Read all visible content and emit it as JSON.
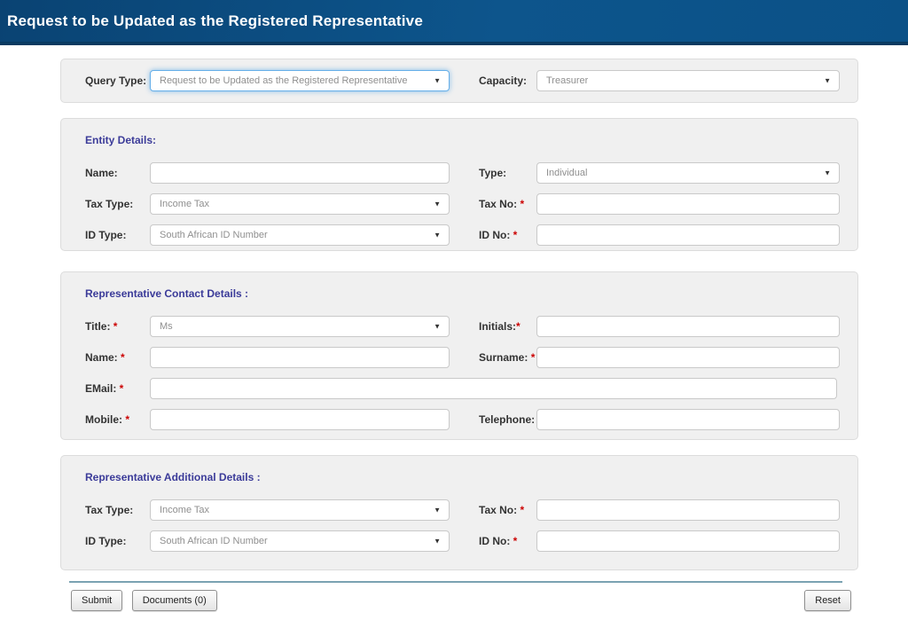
{
  "colors": {
    "header_blue_dark": "#0a4373",
    "header_blue_light": "#0d558c",
    "header_border": "#093a61",
    "panel_background": "#f0f0f0",
    "section_heading_blue": "#3b3b99",
    "required_red": "#cc0000",
    "focus_blue": "#66afe9",
    "divider_teal": "#7aa2b2"
  },
  "header": {
    "title": "Request to be Updated as the Registered Representative"
  },
  "icons": {
    "dropdown_arrow": "▼"
  },
  "query_panel": {
    "query_type_label": "Query Type:",
    "query_type_value": "Request to be Updated as the Registered Representative",
    "capacity_label": "Capacity:",
    "capacity_value": "Treasurer"
  },
  "entity": {
    "heading": "Entity Details:",
    "name_label": "Name:",
    "name_value": "",
    "type_label": "Type:",
    "type_value": "Individual",
    "tax_type_label": "Tax Type:",
    "tax_type_value": "Income Tax",
    "tax_no_label": "Tax No:",
    "tax_no_req": " *",
    "tax_no_value": "",
    "id_type_label": "ID Type:",
    "id_type_value": "South African ID Number",
    "id_no_label": "ID No:",
    "id_no_req": " *",
    "id_no_value": ""
  },
  "contact": {
    "heading": "Representative Contact Details :",
    "title_label": "Title:",
    "title_req": " *",
    "title_value": "Ms",
    "initials_label": "Initials:",
    "initials_req": "*",
    "initials_value": "",
    "name_label": "Name:",
    "name_req": " *",
    "name_value": "",
    "surname_label": "Surname:",
    "surname_req": " *",
    "surname_value": "",
    "email_label": "EMail:",
    "email_req": " *",
    "email_value": "",
    "mobile_label": "Mobile:",
    "mobile_req": " *",
    "mobile_value": "",
    "telephone_label": "Telephone:",
    "telephone_value": ""
  },
  "additional": {
    "heading": "Representative Additional Details :",
    "tax_type_label": "Tax Type:",
    "tax_type_value": "Income Tax",
    "tax_no_label": "Tax No:",
    "tax_no_req": " *",
    "tax_no_value": "",
    "id_type_label": "ID Type:",
    "id_type_value": "South African ID Number",
    "id_no_label": "ID No:",
    "id_no_req": " *",
    "id_no_value": ""
  },
  "footer": {
    "submit_label": "Submit",
    "documents_label": "Documents (0)",
    "reset_label": "Reset"
  }
}
